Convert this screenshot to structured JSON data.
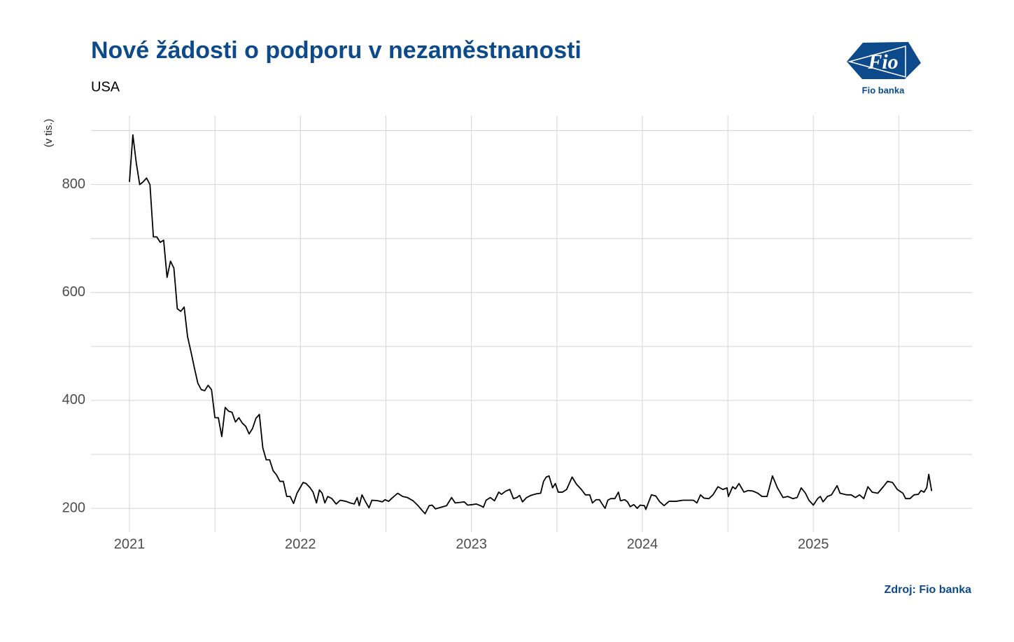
{
  "chart_data": {
    "type": "line",
    "title": "Nové žádosti o podporu v nezaměstnanosti",
    "subtitle": "USA",
    "y_label": "(v tis.)",
    "source": "Zdroj: Fio banka",
    "logo_text": "Fio",
    "logo_caption": "Fio banka",
    "color": "#000000",
    "grid": true,
    "xlim": [
      2020.775,
      2025.928
    ],
    "ylim": [
      156,
      902
    ],
    "xticks": [
      2021,
      2022,
      2023,
      2024,
      2025
    ],
    "yticks": [
      200,
      400,
      600,
      800
    ],
    "minor_xticks": [
      2021.5,
      2022.5,
      2023.5,
      2024.5,
      2025.5
    ],
    "minor_yticks": [
      300,
      500,
      700,
      900
    ],
    "x": [
      2021.0,
      2021.02,
      2021.04,
      2021.06,
      2021.08,
      2021.1,
      2021.12,
      2021.14,
      2021.16,
      2021.18,
      2021.2,
      2021.22,
      2021.24,
      2021.26,
      2021.28,
      2021.3,
      2021.32,
      2021.34,
      2021.36,
      2021.38,
      2021.4,
      2021.42,
      2021.44,
      2021.46,
      2021.48,
      2021.5,
      2021.52,
      2021.54,
      2021.56,
      2021.58,
      2021.6,
      2021.62,
      2021.64,
      2021.66,
      2021.68,
      2021.7,
      2021.72,
      2021.74,
      2021.76,
      2021.78,
      2021.8,
      2021.82,
      2021.84,
      2021.86,
      2021.88,
      2021.9,
      2021.92,
      2021.94,
      2021.96,
      2021.98,
      2022.016,
      2022.033,
      2022.057,
      2022.074,
      2022.094,
      2022.111,
      2022.127,
      2022.143,
      2022.16,
      2022.184,
      2022.209,
      2022.233,
      2022.266,
      2022.291,
      2022.315,
      2022.332,
      2022.344,
      2022.36,
      2022.381,
      2022.401,
      2022.418,
      2022.454,
      2022.479,
      2022.495,
      2022.516,
      2022.536,
      2022.569,
      2022.598,
      2022.626,
      2022.659,
      2022.688,
      2022.712,
      2022.729,
      2022.753,
      2022.77,
      2022.79,
      2022.823,
      2022.855,
      2022.884,
      2022.905,
      2022.933,
      2022.958,
      2022.978,
      2023.008,
      2023.029,
      2023.053,
      2023.07,
      2023.086,
      2023.111,
      2023.135,
      2023.16,
      2023.176,
      2023.201,
      2023.225,
      2023.246,
      2023.266,
      2023.282,
      2023.299,
      2023.323,
      2023.348,
      2023.381,
      2023.405,
      2023.422,
      2023.438,
      2023.454,
      2023.475,
      2023.491,
      2023.508,
      2023.532,
      2023.557,
      2023.589,
      2023.614,
      2023.643,
      2023.667,
      2023.692,
      2023.708,
      2023.729,
      2023.749,
      2023.765,
      2023.782,
      2023.798,
      2023.815,
      2023.839,
      2023.86,
      2023.872,
      2023.897,
      2023.913,
      2023.929,
      2023.95,
      2023.97,
      2023.987,
      2024.012,
      2024.02,
      2024.053,
      2024.078,
      2024.102,
      2024.127,
      2024.156,
      2024.196,
      2024.237,
      2024.299,
      2024.319,
      2024.34,
      2024.36,
      2024.389,
      2024.413,
      2024.442,
      2024.471,
      2024.495,
      2024.503,
      2024.528,
      2024.544,
      2024.565,
      2024.594,
      2024.618,
      2024.647,
      2024.675,
      2024.7,
      2024.729,
      2024.761,
      2024.79,
      2024.823,
      2024.851,
      2024.88,
      2024.905,
      2024.929,
      2024.954,
      2024.974,
      2025.0,
      2025.025,
      2025.041,
      2025.057,
      2025.082,
      2025.106,
      2025.139,
      2025.156,
      2025.196,
      2025.221,
      2025.246,
      2025.27,
      2025.295,
      2025.319,
      2025.344,
      2025.377,
      2025.409,
      2025.434,
      2025.463,
      2025.491,
      2025.524,
      2025.54,
      2025.565,
      2025.589,
      2025.614,
      2025.63,
      2025.647,
      2025.663,
      2025.675,
      2025.692
    ],
    "values": [
      805,
      892,
      840,
      800,
      805,
      812,
      800,
      703,
      703,
      693,
      697,
      628,
      658,
      645,
      570,
      565,
      573,
      518,
      490,
      460,
      432,
      420,
      418,
      428,
      420,
      368,
      368,
      333,
      387,
      380,
      378,
      360,
      368,
      358,
      352,
      338,
      348,
      367,
      374,
      312,
      290,
      290,
      270,
      262,
      250,
      250,
      222,
      222,
      209,
      228,
      248,
      246,
      238,
      230,
      210,
      234,
      228,
      210,
      222,
      218,
      208,
      215,
      213,
      210,
      208,
      220,
      205,
      225,
      212,
      201,
      215,
      214,
      212,
      216,
      213,
      219,
      228,
      222,
      220,
      214,
      205,
      196,
      190,
      205,
      206,
      199,
      202,
      205,
      220,
      210,
      211,
      212,
      206,
      207,
      208,
      205,
      202,
      215,
      220,
      214,
      230,
      226,
      232,
      235,
      218,
      220,
      224,
      212,
      220,
      224,
      227,
      228,
      250,
      258,
      260,
      238,
      246,
      230,
      230,
      235,
      258,
      245,
      235,
      225,
      225,
      210,
      216,
      216,
      208,
      200,
      215,
      218,
      218,
      230,
      214,
      216,
      212,
      203,
      207,
      200,
      206,
      205,
      198,
      225,
      223,
      212,
      205,
      213,
      213,
      215,
      215,
      210,
      225,
      219,
      218,
      225,
      240,
      235,
      238,
      222,
      240,
      236,
      246,
      230,
      233,
      232,
      228,
      222,
      222,
      260,
      238,
      220,
      222,
      218,
      220,
      238,
      228,
      215,
      206,
      218,
      222,
      212,
      222,
      225,
      242,
      228,
      225,
      225,
      220,
      225,
      218,
      240,
      230,
      228,
      240,
      250,
      248,
      235,
      228,
      218,
      218,
      225,
      226,
      233,
      230,
      238,
      263,
      232
    ]
  }
}
